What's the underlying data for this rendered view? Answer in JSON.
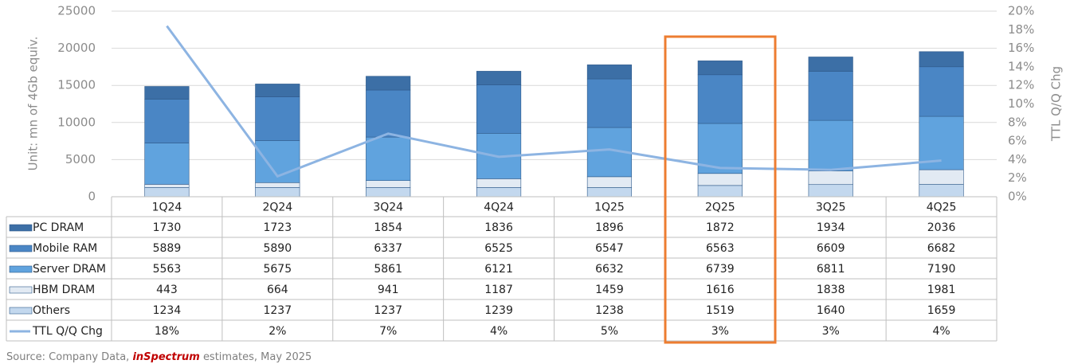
{
  "chart_data": {
    "type": "bar",
    "y_label": "Unit: mn of 4Gb equiv.",
    "y2_label": "TTL Q/Q Chg",
    "categories": [
      "1Q24",
      "2Q24",
      "3Q24",
      "4Q24",
      "1Q25",
      "2Q25",
      "3Q25",
      "4Q25"
    ],
    "series": [
      {
        "name": "PC DRAM",
        "color": "#3c6fa6",
        "values": [
          1730,
          1723,
          1854,
          1836,
          1896,
          1872,
          1934,
          2036
        ]
      },
      {
        "name": "Mobile RAM",
        "color": "#4a86c5",
        "values": [
          5889,
          5890,
          6337,
          6525,
          6547,
          6563,
          6609,
          6682
        ]
      },
      {
        "name": "Server DRAM",
        "color": "#60a3de",
        "values": [
          5563,
          5675,
          5861,
          6121,
          6632,
          6739,
          6811,
          7190
        ]
      },
      {
        "name": "HBM DRAM",
        "color": "#e2eaf3",
        "values": [
          443,
          664,
          941,
          1187,
          1459,
          1616,
          1838,
          1981
        ]
      },
      {
        "name": "Others",
        "color": "#c3d8ee",
        "values": [
          1234,
          1237,
          1237,
          1239,
          1238,
          1519,
          1640,
          1659
        ]
      },
      {
        "name": "TTL Q/Q Chg",
        "color": "#8db4e2",
        "type": "line",
        "axis": "y2",
        "values": [
          18.4,
          2.2,
          6.8,
          4.3,
          5.1,
          3.1,
          2.9,
          3.9
        ],
        "value_labels": [
          "18%",
          "2%",
          "7%",
          "4%",
          "5%",
          "3%",
          "3%",
          "4%"
        ]
      }
    ],
    "ylim": [
      0,
      25000
    ],
    "yticks": [
      0,
      5000,
      10000,
      15000,
      20000,
      25000
    ],
    "y2lim": [
      0,
      20
    ],
    "y2ticks": [
      {
        "value": 0,
        "label": "0%"
      },
      {
        "value": 2,
        "label": "2%"
      },
      {
        "value": 4,
        "label": "4%"
      },
      {
        "value": 6,
        "label": "6%"
      },
      {
        "value": 8,
        "label": "8%"
      },
      {
        "value": 10,
        "label": "10%"
      },
      {
        "value": 12,
        "label": "12%"
      },
      {
        "value": 14,
        "label": "14%"
      },
      {
        "value": 16,
        "label": "16%"
      },
      {
        "value": 18,
        "label": "18%"
      },
      {
        "value": 20,
        "label": "20%"
      }
    ],
    "grid": true
  },
  "source": {
    "prefix": "Source: Company Data,",
    "brand": "inSpectrum",
    "suffix": "estimates, May 2025"
  }
}
